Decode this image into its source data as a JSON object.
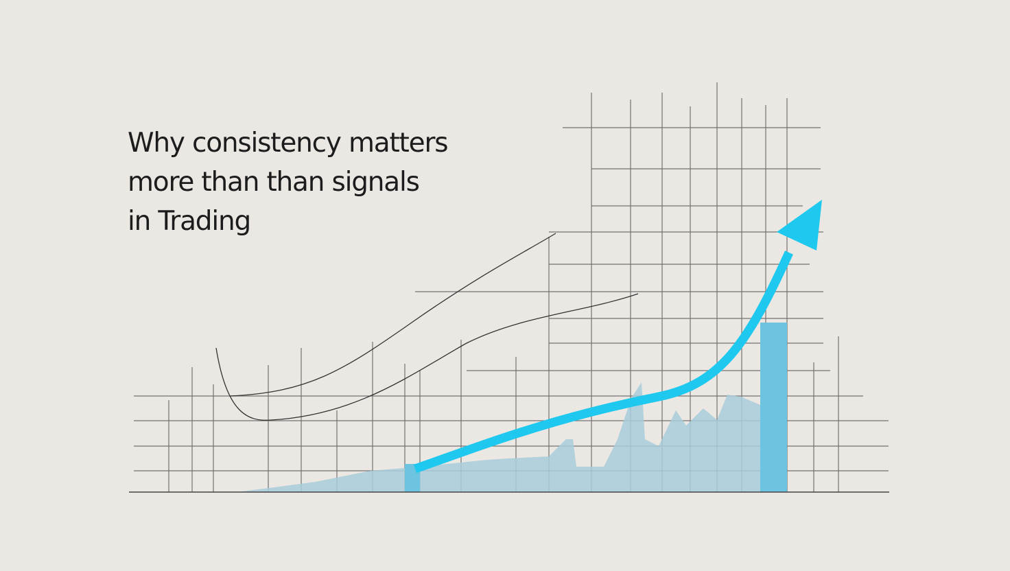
{
  "headline": {
    "lines": [
      "Why consistency matters",
      "more than than signals",
      "in Trading"
    ]
  },
  "illustration": {
    "description_icon": "rising-trend-arrow-icon",
    "colors": {
      "background": "#ebe8e3",
      "arrow": "#1ec8ee",
      "area": "#a9cdda",
      "bar": "#6cc4e0",
      "grid": "#555555"
    }
  }
}
